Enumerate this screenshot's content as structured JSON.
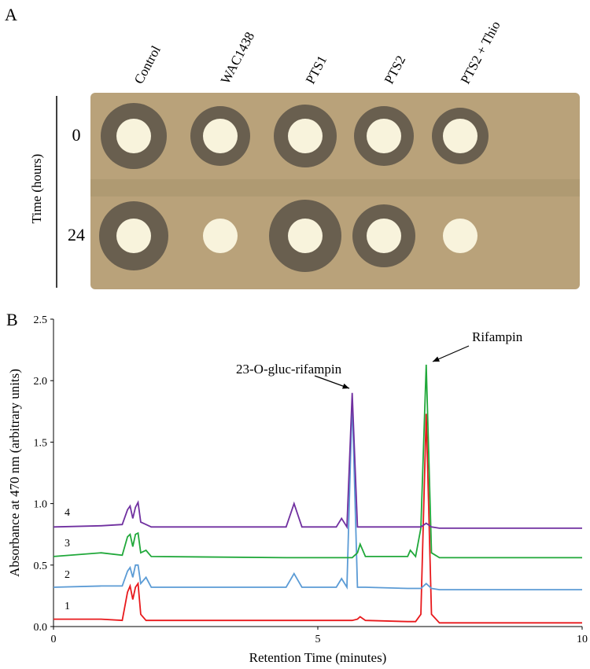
{
  "panel_a": {
    "label": "A",
    "columns": [
      "Control",
      "WAC1438",
      "PTS1",
      "PTS2",
      "PTS2 + Thio"
    ],
    "row_axis_label": "Time (hours)",
    "rows": [
      "0",
      "24"
    ]
  },
  "panel_b_label": "B",
  "chart_data": {
    "type": "line",
    "x_label": "Retention Time (minutes)",
    "y_label": "Absorbance at 470 nm (arbitrary units)",
    "annotations": [
      "23-O-gluc-rifampin",
      "Rifampin"
    ],
    "xlim": [
      0,
      10
    ],
    "xticks": [
      0,
      5,
      10
    ],
    "ylim": [
      0,
      2.5
    ],
    "yticks": [
      {
        "value": 0,
        "label": "0.0"
      },
      {
        "value": 0.5,
        "label": "0.5"
      },
      {
        "value": 1,
        "label": "1.0"
      },
      {
        "value": 1.5,
        "label": "1.5"
      },
      {
        "value": 2,
        "label": "2.0"
      },
      {
        "value": 2.5,
        "label": "2.5"
      }
    ],
    "grid": false,
    "x": [
      0,
      0.9,
      1.3,
      1.4,
      1.45,
      1.5,
      1.55,
      1.6,
      1.65,
      1.75,
      1.85,
      4.4,
      4.55,
      4.7,
      5.35,
      5.45,
      5.55,
      5.65,
      5.75,
      5.8,
      5.9,
      6.7,
      6.75,
      6.85,
      6.95,
      7.05,
      7.15,
      7.3,
      10
    ],
    "series": [
      {
        "name": "1",
        "color": "#e8191c",
        "values": [
          0.06,
          0.06,
          0.05,
          0.28,
          0.33,
          0.22,
          0.32,
          0.35,
          0.1,
          0.05,
          0.05,
          0.05,
          0.05,
          0.05,
          0.05,
          0.05,
          0.05,
          0.05,
          0.06,
          0.08,
          0.05,
          0.04,
          0.04,
          0.04,
          0.1,
          1.73,
          0.1,
          0.03,
          0.03
        ]
      },
      {
        "name": "2",
        "color": "#5b9bd5",
        "values": [
          0.32,
          0.33,
          0.33,
          0.45,
          0.48,
          0.4,
          0.5,
          0.5,
          0.35,
          0.4,
          0.32,
          0.32,
          0.43,
          0.32,
          0.32,
          0.39,
          0.32,
          1.85,
          0.32,
          0.32,
          0.32,
          0.31,
          0.31,
          0.31,
          0.31,
          0.35,
          0.31,
          0.3,
          0.3
        ]
      },
      {
        "name": "3",
        "color": "#20a83a",
        "values": [
          0.57,
          0.6,
          0.58,
          0.73,
          0.75,
          0.65,
          0.75,
          0.76,
          0.6,
          0.62,
          0.57,
          0.56,
          0.56,
          0.56,
          0.56,
          0.56,
          0.56,
          0.56,
          0.6,
          0.67,
          0.57,
          0.57,
          0.62,
          0.57,
          0.8,
          2.13,
          0.6,
          0.56,
          0.56
        ]
      },
      {
        "name": "4",
        "color": "#7030a0",
        "values": [
          0.81,
          0.82,
          0.83,
          0.95,
          0.98,
          0.88,
          0.97,
          1.01,
          0.85,
          0.83,
          0.81,
          0.81,
          1.0,
          0.81,
          0.81,
          0.88,
          0.81,
          1.9,
          0.81,
          0.81,
          0.81,
          0.81,
          0.81,
          0.81,
          0.81,
          0.84,
          0.81,
          0.8,
          0.8
        ]
      }
    ]
  }
}
